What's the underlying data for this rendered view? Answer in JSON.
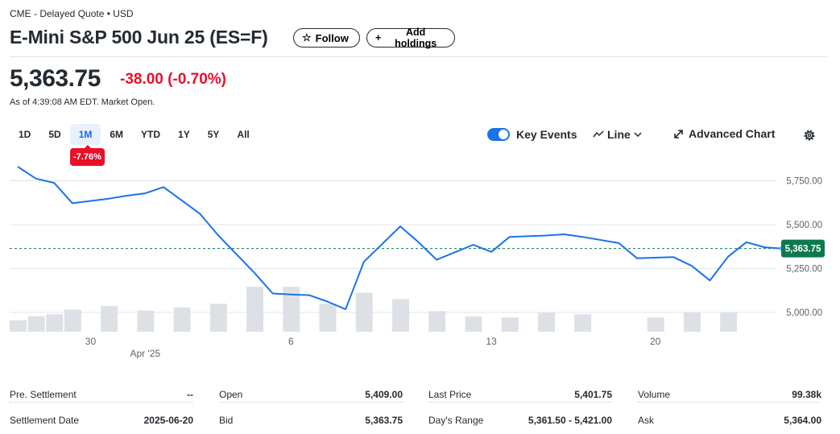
{
  "header": {
    "exchange": "CME - Delayed Quote • USD",
    "title": "E-Mini S&P 500 Jun 25 (ES=F)",
    "follow_label": "Follow",
    "add_holdings_label": "Add holdings"
  },
  "quote": {
    "price": "5,363.75",
    "change": "-38.00",
    "change_pct": "(-0.70%)",
    "as_of": "As of 4:39:08 AM EDT. Market Open."
  },
  "ranges": {
    "items": [
      "1D",
      "5D",
      "1M",
      "6M",
      "YTD",
      "1Y",
      "5Y",
      "All"
    ],
    "active": "1M",
    "badge": "-7.76%"
  },
  "controls": {
    "key_events_label": "Key Events",
    "key_events_on": true,
    "line_label": "Line",
    "advanced_chart_label": "Advanced Chart"
  },
  "colors": {
    "line": "#1a73e8",
    "negative": "#eb0f29",
    "current_tag": "#0b7a4f",
    "volume": "#dde1e6"
  },
  "chart_data": {
    "type": "line",
    "y_ticks": [
      "5,750.00",
      "5,500.00",
      "5,250.00",
      "5,000.00"
    ],
    "y_tick_values": [
      5750,
      5500,
      5250,
      5000
    ],
    "ylim": [
      4890,
      5885
    ],
    "x_tick_labels": [
      {
        "label": "30",
        "index": 4
      },
      {
        "label": "6",
        "index": 15
      },
      {
        "label": "13",
        "index": 26
      },
      {
        "label": "20",
        "index": 35
      }
    ],
    "month_label": {
      "label": "Apr '25",
      "index": 7
    },
    "current_value": 5363.75,
    "current_label": "5,363.75",
    "series": [
      {
        "values": [
          5830,
          5762,
          5738,
          5622,
          5648,
          5665,
          5678,
          5714,
          5562,
          5440,
          5225,
          5108,
          5102,
          5098,
          5062,
          5018,
          5288,
          5490,
          5400,
          5300,
          5385,
          5345,
          5430,
          5438,
          5445,
          5430,
          5395,
          5308,
          5312,
          5315,
          5265,
          5182,
          5318,
          5400,
          5371,
          5363.75
        ],
        "x_index": [
          0,
          1,
          2,
          3,
          5,
          6,
          7,
          8,
          10,
          11,
          13,
          14,
          15,
          16,
          17,
          18,
          19,
          21,
          22,
          23,
          25,
          26,
          27,
          29,
          30,
          31,
          33,
          34,
          35,
          36,
          37,
          38,
          39,
          40,
          41,
          42
        ]
      }
    ],
    "volume": [
      0.25,
      0.34,
      0.38,
      0.48,
      0,
      0.56,
      0,
      0.46,
      0,
      0.53,
      0,
      0.61,
      0,
      0.98,
      0,
      0.98,
      0,
      0.61,
      0,
      0.85,
      0,
      0.71,
      0,
      0.45,
      0,
      0.33,
      0,
      0.31,
      0,
      0.41,
      0,
      0.38,
      0,
      0,
      0,
      0.31,
      0,
      0.43,
      0,
      0.43,
      0,
      0,
      0
    ]
  },
  "stats": [
    [
      {
        "label": "Pre. Settlement",
        "value": "--"
      },
      {
        "label": "Open",
        "value": "5,409.00"
      },
      {
        "label": "Last Price",
        "value": "5,401.75"
      },
      {
        "label": "Volume",
        "value": "99.38k"
      }
    ],
    [
      {
        "label": "Settlement Date",
        "value": "2025-06-20"
      },
      {
        "label": "Bid",
        "value": "5,363.75"
      },
      {
        "label": "Day's Range",
        "value": "5,361.50 - 5,421.00"
      },
      {
        "label": "Ask",
        "value": "5,364.00"
      }
    ]
  ]
}
